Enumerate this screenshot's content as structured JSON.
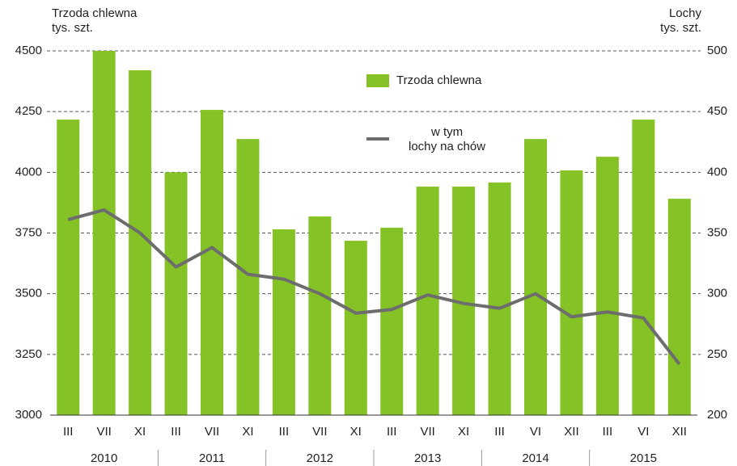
{
  "chart_data": {
    "type": "bar_line",
    "y_label": "Trzoda chlewna\ntys. szt.",
    "y2_label": "Lochy\ntys. szt.",
    "categories": [
      "III",
      "VII",
      "XI",
      "III",
      "VII",
      "XI",
      "III",
      "VII",
      "XI",
      "III",
      "VII",
      "XI",
      "III",
      "VI",
      "XII",
      "III",
      "VI",
      "XII"
    ],
    "years": [
      "2010",
      "2011",
      "2012",
      "2013",
      "2014",
      "2015"
    ],
    "series": [
      {
        "name": "Trzoda chlewna",
        "type": "bar",
        "color": "#84c225",
        "values": [
          4217,
          4500,
          4420,
          4000,
          4257,
          4137,
          3765,
          3818,
          3718,
          3772,
          3941,
          3941,
          3958,
          4137,
          4008,
          4064,
          4217,
          3891
        ]
      },
      {
        "name": "w tym\nlochy na chów",
        "type": "line",
        "axis": "y2",
        "color": "#6d6d6d",
        "values": [
          361,
          369,
          350,
          322,
          338,
          316,
          312,
          300,
          284,
          287,
          299,
          292,
          288,
          300,
          281,
          285,
          280,
          242
        ]
      }
    ],
    "ylim": [
      3000,
      4500
    ],
    "yticks": [
      3000,
      3250,
      3500,
      3750,
      4000,
      4250,
      4500
    ],
    "y2lim": [
      200,
      500
    ],
    "y2ticks": [
      200,
      250,
      300,
      350,
      400,
      450,
      500
    ],
    "grid": true
  }
}
